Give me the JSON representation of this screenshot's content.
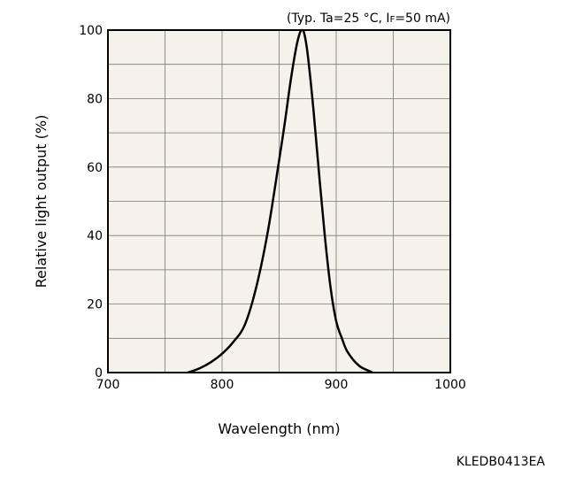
{
  "chart_data": {
    "type": "line",
    "condition_prefix": "(Typ. Ta=25 °C, I",
    "condition_sub": "F",
    "condition_suffix": "=50 mA)",
    "xlabel": "Wavelength (nm)",
    "ylabel": "Relative light output (%)",
    "xlim": [
      700,
      1000
    ],
    "ylim": [
      0,
      100
    ],
    "xticks": [
      700,
      800,
      900,
      1000
    ],
    "yticks": [
      0,
      20,
      40,
      60,
      80,
      100
    ],
    "x_grid_step": 50,
    "y_grid_step": 10,
    "grid": true,
    "plot_background": "#f4f2ea",
    "line_color": "#000000",
    "series": [
      {
        "x": [
          770,
          780,
          790,
          800,
          810,
          820,
          830,
          840,
          850,
          855,
          860,
          865,
          868,
          870,
          872,
          875,
          880,
          885,
          890,
          895,
          900,
          905,
          910,
          920,
          930,
          932
        ],
        "y": [
          0,
          1.2,
          3,
          5.5,
          9,
          14,
          25,
          41,
          62,
          73,
          85,
          95,
          99,
          100,
          99,
          93,
          77,
          58,
          40,
          25,
          15,
          10,
          6,
          2,
          0.3,
          0
        ]
      }
    ]
  },
  "figure_code": "KLEDB0413EA"
}
